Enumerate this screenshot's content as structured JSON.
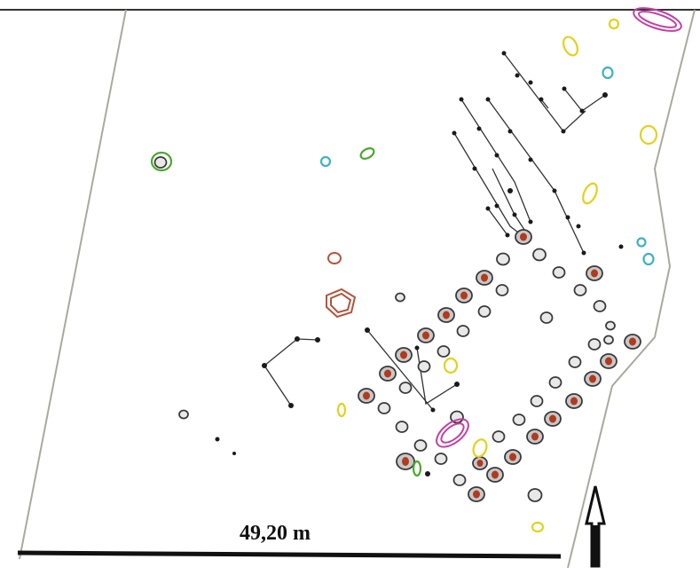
{
  "scale_bar": {
    "label": "49,20 m"
  },
  "colors": {
    "boundary": "#a9a9a0",
    "posthole": "#3a3a3a",
    "posthole_fill": "#b13a1f",
    "yellow": "#e3d21a",
    "cyan": "#3fb2c0",
    "magenta": "#c43fa4",
    "green": "#4aa82d",
    "brown": "#b5533a"
  },
  "icons": {
    "north_arrow": "north-arrow-icon"
  }
}
